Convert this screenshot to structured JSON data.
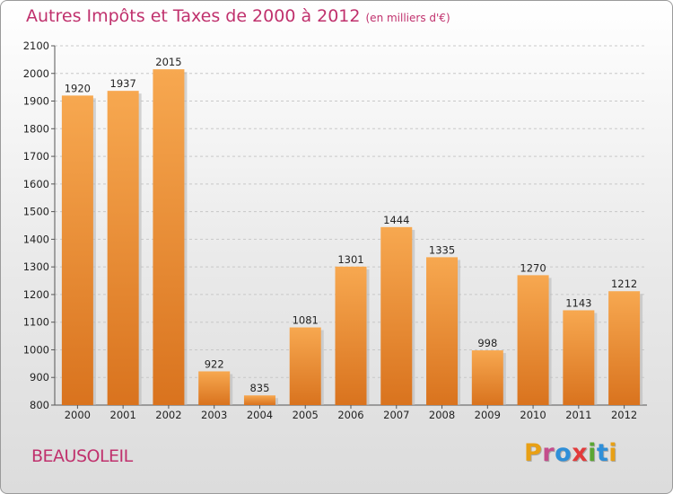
{
  "header": {
    "title": "Autres Impôts et Taxes de 2000 à 2012",
    "unit": "(en milliers d'€)"
  },
  "footer": {
    "city": "BEAUSOLEIL",
    "logo": "Proxiti"
  },
  "colors": {
    "title": "#c0316d",
    "bar_light": "#f7a850",
    "bar_dark": "#d9731e",
    "logo_letters": [
      "#e8a015",
      "#c44d8c",
      "#2f8fd8",
      "#e23b3b",
      "#5aa632",
      "#2f8fd8",
      "#e8a015"
    ]
  },
  "chart_data": {
    "type": "bar",
    "categories": [
      "2000",
      "2001",
      "2002",
      "2003",
      "2004",
      "2005",
      "2006",
      "2007",
      "2008",
      "2009",
      "2010",
      "2011",
      "2012"
    ],
    "values": [
      1920,
      1937,
      2015,
      922,
      835,
      1081,
      1301,
      1444,
      1335,
      998,
      1270,
      1143,
      1212
    ],
    "ylim": [
      800,
      2100
    ],
    "yticks": [
      800,
      900,
      1000,
      1100,
      1200,
      1300,
      1400,
      1500,
      1600,
      1700,
      1800,
      1900,
      2000,
      2100
    ],
    "grid": "horizontal dashed",
    "data_labels": true
  }
}
